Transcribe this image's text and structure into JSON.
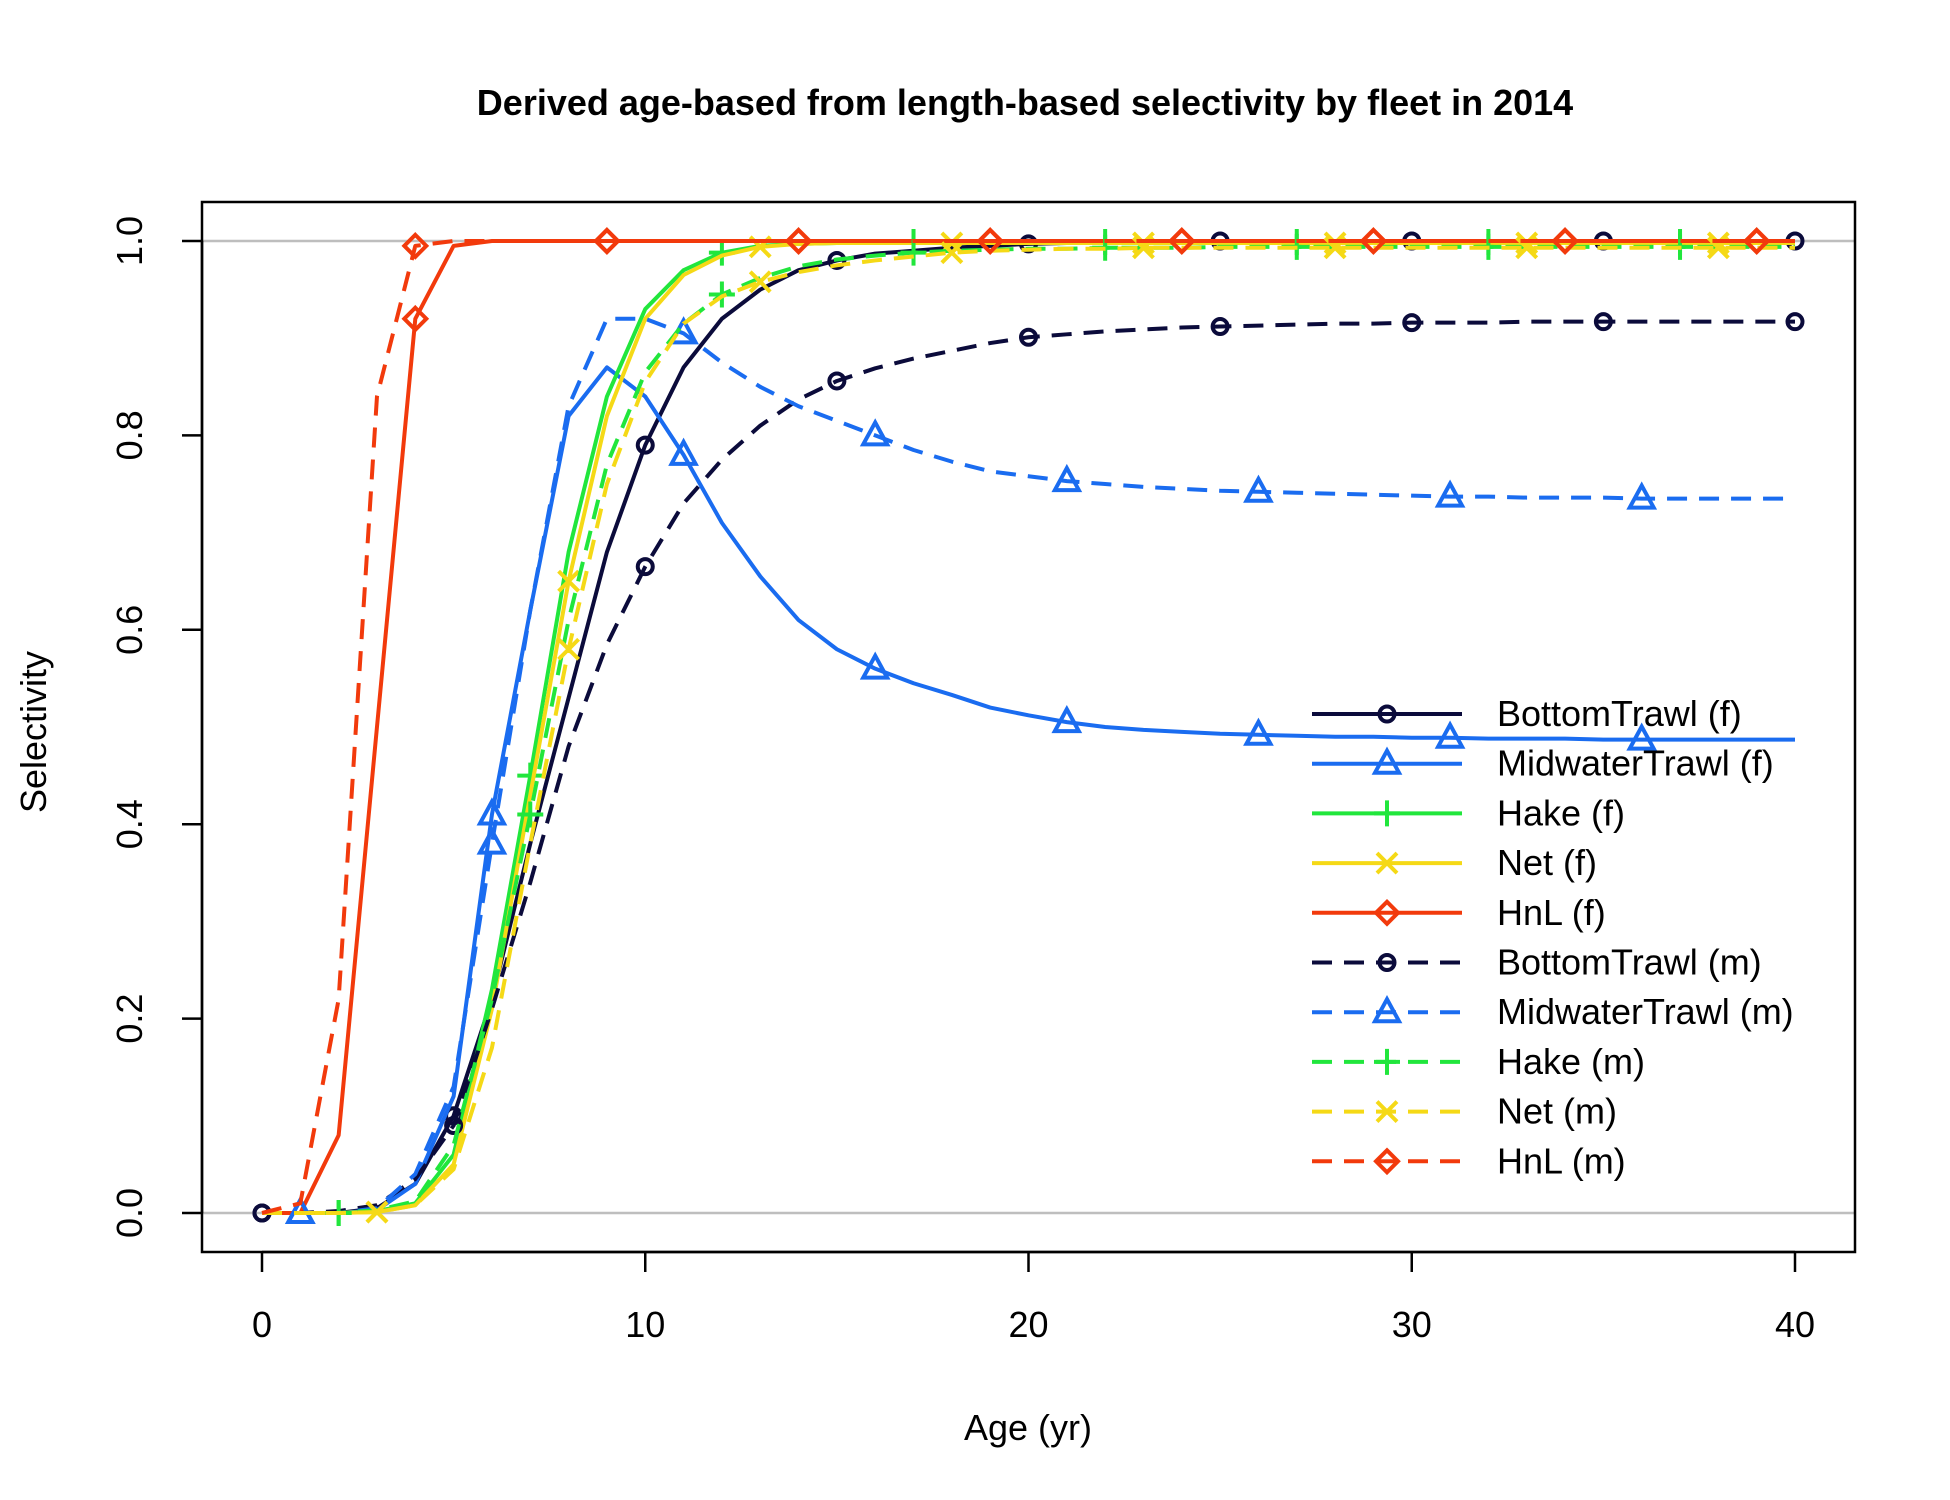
{
  "chart_data": {
    "type": "line",
    "title": "Derived age-based from length-based selectivity by fleet in 2014",
    "xlabel": "Age (yr)",
    "ylabel": "Selectivity",
    "xlim": [
      0,
      40
    ],
    "ylim": [
      0,
      1
    ],
    "x_ticks": [
      "0",
      "10",
      "20",
      "30",
      "40"
    ],
    "y_ticks": [
      "0.0",
      "0.2",
      "0.4",
      "0.6",
      "0.8",
      "1.0"
    ],
    "reference_lines": [
      0,
      1
    ],
    "legend_position": "right",
    "x": [
      0,
      1,
      2,
      3,
      4,
      5,
      6,
      7,
      8,
      9,
      10,
      11,
      12,
      13,
      14,
      15,
      16,
      17,
      18,
      19,
      20,
      21,
      22,
      23,
      24,
      25,
      26,
      27,
      28,
      29,
      30,
      31,
      32,
      33,
      34,
      35,
      36,
      37,
      38,
      39,
      40
    ],
    "series": [
      {
        "name": "BottomTrawl (f)",
        "color": "#0b0b3b",
        "dash": "solid",
        "marker": "circle",
        "marker_offset": 0,
        "values": [
          0,
          0,
          0,
          0.005,
          0.03,
          0.1,
          0.22,
          0.38,
          0.53,
          0.68,
          0.79,
          0.87,
          0.92,
          0.95,
          0.97,
          0.98,
          0.987,
          0.99,
          0.993,
          0.995,
          0.997,
          0.998,
          0.998,
          0.999,
          0.999,
          1,
          1,
          1,
          1,
          1,
          1,
          1,
          1,
          1,
          1,
          1,
          1,
          1,
          1,
          1,
          1
        ]
      },
      {
        "name": "MidwaterTrawl (f)",
        "color": "#1a6cf0",
        "dash": "solid",
        "marker": "triangle",
        "marker_offset": 1,
        "values": [
          0,
          0,
          0,
          0.003,
          0.03,
          0.12,
          0.41,
          0.62,
          0.82,
          0.87,
          0.84,
          0.78,
          0.71,
          0.655,
          0.61,
          0.58,
          0.56,
          0.545,
          0.533,
          0.52,
          0.512,
          0.505,
          0.5,
          0.497,
          0.495,
          0.493,
          0.492,
          0.491,
          0.49,
          0.49,
          0.489,
          0.489,
          0.488,
          0.488,
          0.488,
          0.487,
          0.487,
          0.487,
          0.487,
          0.487,
          0.487
        ]
      },
      {
        "name": "Hake (f)",
        "color": "#21e63c",
        "dash": "solid",
        "marker": "plus",
        "marker_offset": 2,
        "values": [
          0,
          0,
          0,
          0.002,
          0.01,
          0.06,
          0.23,
          0.45,
          0.68,
          0.84,
          0.93,
          0.97,
          0.988,
          0.995,
          0.997,
          0.998,
          0.998,
          0.999,
          0.999,
          0.999,
          0.999,
          0.999,
          0.999,
          0.999,
          0.999,
          0.999,
          0.999,
          0.999,
          0.999,
          0.999,
          0.999,
          0.999,
          0.999,
          0.999,
          0.999,
          0.999,
          0.999,
          0.999,
          0.999,
          0.999,
          0.999
        ]
      },
      {
        "name": "Net (f)",
        "color": "#f5d916",
        "dash": "solid",
        "marker": "x",
        "marker_offset": 3,
        "values": [
          0,
          0,
          0,
          0.001,
          0.008,
          0.05,
          0.21,
          0.43,
          0.65,
          0.82,
          0.92,
          0.965,
          0.985,
          0.994,
          0.997,
          0.998,
          0.998,
          0.998,
          0.998,
          0.998,
          0.998,
          0.998,
          0.998,
          0.998,
          0.998,
          0.998,
          0.998,
          0.998,
          0.998,
          0.998,
          0.998,
          0.998,
          0.998,
          0.998,
          0.998,
          0.998,
          0.998,
          0.998,
          0.998,
          0.998,
          0.998
        ]
      },
      {
        "name": "HnL (f)",
        "color": "#f23a0c",
        "dash": "solid",
        "marker": "diamond",
        "marker_offset": 4,
        "values": [
          0,
          0,
          0.08,
          0.5,
          0.92,
          0.995,
          1,
          1,
          1,
          1,
          1,
          1,
          1,
          1,
          1,
          1,
          1,
          1,
          1,
          1,
          1,
          1,
          1,
          1,
          1,
          1,
          1,
          1,
          1,
          1,
          1,
          1,
          1,
          1,
          1,
          1,
          1,
          1,
          1,
          1,
          1
        ]
      },
      {
        "name": "BottomTrawl (m)",
        "color": "#0b0b3b",
        "dash": "dashed",
        "marker": "circle",
        "marker_offset": 0,
        "values": [
          0,
          0,
          0.002,
          0.008,
          0.035,
          0.09,
          0.21,
          0.34,
          0.48,
          0.585,
          0.665,
          0.73,
          0.775,
          0.81,
          0.837,
          0.856,
          0.869,
          0.879,
          0.887,
          0.895,
          0.901,
          0.904,
          0.907,
          0.909,
          0.911,
          0.912,
          0.913,
          0.914,
          0.915,
          0.915,
          0.916,
          0.916,
          0.916,
          0.917,
          0.917,
          0.917,
          0.917,
          0.917,
          0.917,
          0.917,
          0.917
        ]
      },
      {
        "name": "MidwaterTrawl (m)",
        "color": "#1a6cf0",
        "dash": "dashed",
        "marker": "triangle",
        "marker_offset": 1,
        "values": [
          0,
          0,
          0,
          0.005,
          0.04,
          0.13,
          0.38,
          0.62,
          0.83,
          0.92,
          0.92,
          0.905,
          0.875,
          0.85,
          0.83,
          0.815,
          0.8,
          0.785,
          0.773,
          0.763,
          0.758,
          0.753,
          0.75,
          0.747,
          0.745,
          0.743,
          0.742,
          0.741,
          0.74,
          0.739,
          0.738,
          0.737,
          0.737,
          0.736,
          0.736,
          0.736,
          0.735,
          0.735,
          0.735,
          0.735,
          0.735
        ]
      },
      {
        "name": "Hake (m)",
        "color": "#21e63c",
        "dash": "dashed",
        "marker": "plus",
        "marker_offset": 2,
        "values": [
          0,
          0,
          0,
          0.003,
          0.012,
          0.07,
          0.22,
          0.41,
          0.61,
          0.77,
          0.865,
          0.915,
          0.945,
          0.962,
          0.974,
          0.981,
          0.985,
          0.988,
          0.99,
          0.991,
          0.992,
          0.992,
          0.993,
          0.993,
          0.993,
          0.994,
          0.994,
          0.994,
          0.994,
          0.994,
          0.994,
          0.994,
          0.994,
          0.994,
          0.994,
          0.994,
          0.994,
          0.994,
          0.994,
          0.994,
          0.994
        ]
      },
      {
        "name": "Net (m)",
        "color": "#f5d916",
        "dash": "dashed",
        "marker": "x",
        "marker_offset": 3,
        "values": [
          0,
          0,
          0,
          0.001,
          0.008,
          0.045,
          0.17,
          0.38,
          0.58,
          0.75,
          0.855,
          0.915,
          0.943,
          0.958,
          0.968,
          0.975,
          0.98,
          0.984,
          0.988,
          0.99,
          0.991,
          0.992,
          0.992,
          0.993,
          0.993,
          0.993,
          0.993,
          0.993,
          0.993,
          0.993,
          0.993,
          0.993,
          0.993,
          0.993,
          0.993,
          0.993,
          0.993,
          0.993,
          0.993,
          0.993,
          0.993
        ]
      },
      {
        "name": "HnL (m)",
        "color": "#f23a0c",
        "dash": "dashed",
        "marker": "diamond",
        "marker_offset": 4,
        "values": [
          0,
          0.01,
          0.22,
          0.84,
          0.995,
          1,
          1,
          1,
          1,
          1,
          1,
          1,
          1,
          1,
          1,
          1,
          1,
          1,
          1,
          1,
          1,
          1,
          1,
          1,
          1,
          1,
          1,
          1,
          1,
          1,
          1,
          1,
          1,
          1,
          1,
          1,
          1,
          1,
          1,
          1,
          1
        ]
      }
    ]
  }
}
